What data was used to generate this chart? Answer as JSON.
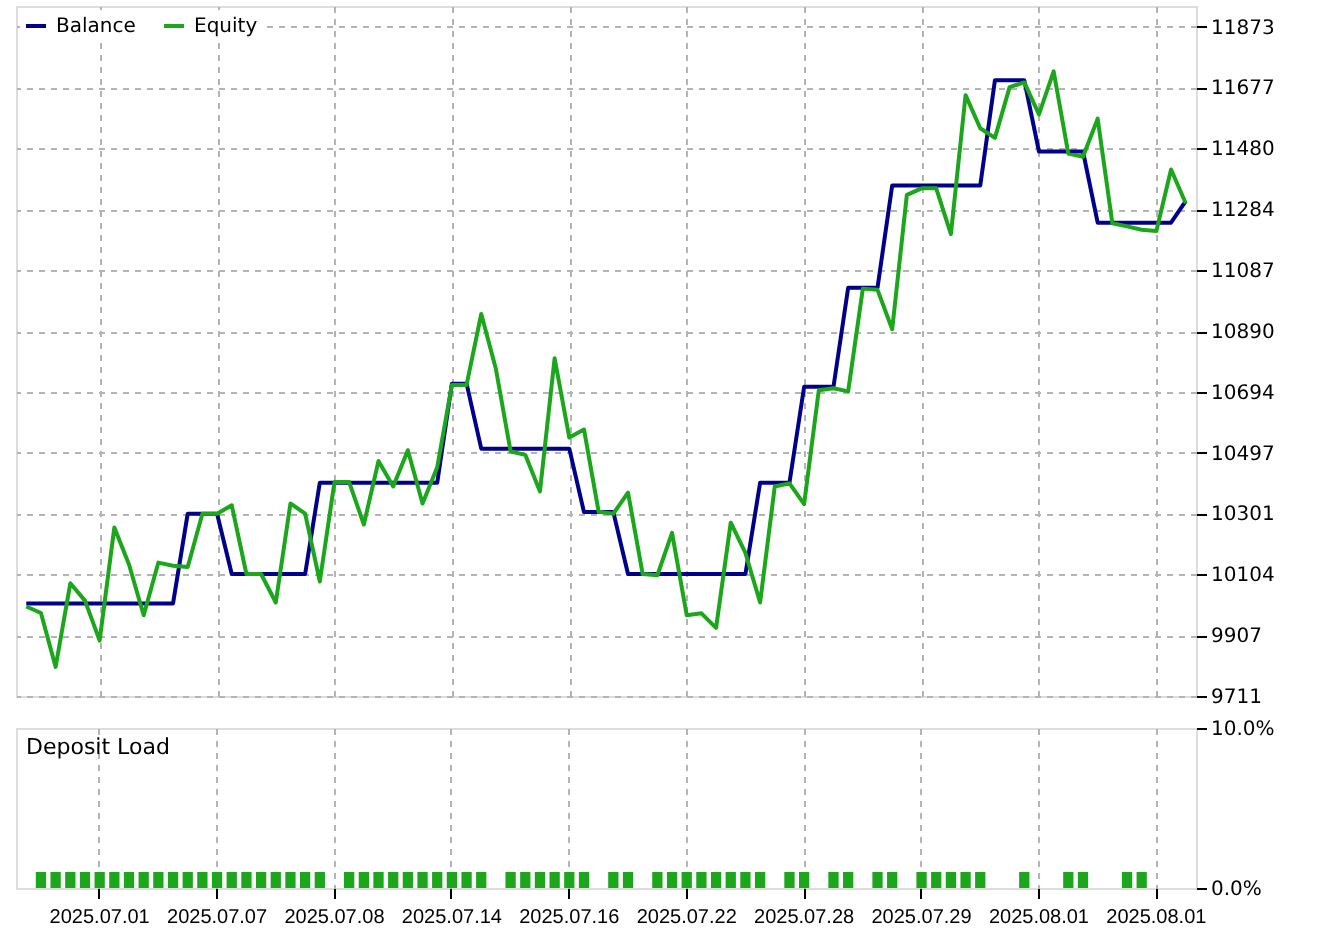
{
  "chart_data": [
    {
      "type": "line",
      "legend": "top left",
      "grid": true,
      "tick_labels": "y",
      "marker": "none",
      "line_style": "solid",
      "categories": [
        null,
        null,
        null,
        null,
        null,
        "2025.07.01",
        null,
        null,
        null,
        null,
        null,
        null,
        null,
        "2025.07.07",
        null,
        null,
        null,
        null,
        null,
        null,
        null,
        "2025.07.08",
        null,
        null,
        null,
        null,
        null,
        null,
        null,
        "2025.07.14",
        null,
        null,
        null,
        null,
        null,
        null,
        null,
        "2025.07.16",
        null,
        null,
        null,
        null,
        null,
        null,
        null,
        "2025.07.22",
        null,
        null,
        null,
        null,
        null,
        null,
        null,
        "2025.07.28",
        null,
        null,
        null,
        null,
        null,
        null,
        null,
        "2025.07.29",
        null,
        null,
        null,
        null,
        null,
        null,
        null,
        "2025.08.01",
        null,
        null,
        null,
        null,
        null,
        null,
        null,
        "2025.08.01",
        null,
        null
      ],
      "ylim": [
        9711,
        11940
      ],
      "yticks": [
        9711,
        9907,
        10104,
        10301,
        10497,
        10694,
        10890,
        11087,
        11284,
        11480,
        11677,
        11873
      ],
      "series": [
        {
          "name": "Balance",
          "color": "#00008b",
          "values": [
            10010,
            10010,
            10010,
            10010,
            10010,
            10010,
            10010,
            10010,
            10010,
            10010,
            10010,
            10300,
            10300,
            10300,
            10105,
            10105,
            10105,
            10105,
            10105,
            10105,
            10400,
            10400,
            10400,
            10400,
            10400,
            10400,
            10400,
            10400,
            10400,
            10720,
            10720,
            10510,
            10510,
            10510,
            10510,
            10510,
            10510,
            10510,
            10305,
            10305,
            10305,
            10105,
            10105,
            10105,
            10105,
            10105,
            10105,
            10105,
            10105,
            10105,
            10400,
            10400,
            10400,
            10710,
            10710,
            10710,
            11030,
            11030,
            11030,
            11360,
            11360,
            11360,
            11360,
            11360,
            11360,
            11360,
            11700,
            11700,
            11700,
            11470,
            11470,
            11470,
            11470,
            11240,
            11240,
            11240,
            11240,
            11240,
            11240,
            11310
          ]
        },
        {
          "name": "Equity",
          "color": "#1ca61c",
          "values": [
            10000,
            9979,
            9805,
            10075,
            10019,
            9890,
            10255,
            10136,
            9972,
            10142,
            10132,
            10128,
            10300,
            10300,
            10327,
            10105,
            10105,
            10013,
            10333,
            10300,
            10081,
            10402,
            10402,
            10265,
            10470,
            10388,
            10505,
            10333,
            10450,
            10716,
            10716,
            10945,
            10767,
            10501,
            10490,
            10372,
            10802,
            10546,
            10572,
            10306,
            10300,
            10368,
            10105,
            10101,
            10238,
            9972,
            9978,
            9931,
            10271,
            10173,
            10013,
            10388,
            10398,
            10331,
            10699,
            10705,
            10695,
            11027,
            11023,
            10896,
            11330,
            11351,
            11351,
            11203,
            11652,
            11545,
            11514,
            11678,
            11693,
            11590,
            11729,
            11463,
            11453,
            11576,
            11238,
            11228,
            11217,
            11213,
            11412,
            11303
          ]
        }
      ]
    },
    {
      "type": "bar",
      "title": "Deposit Load",
      "grid": "x",
      "legend": false,
      "categories": [
        null,
        null,
        null,
        null,
        null,
        "2025.07.01",
        null,
        null,
        null,
        null,
        null,
        null,
        null,
        "2025.07.07",
        null,
        null,
        null,
        null,
        null,
        null,
        null,
        "2025.07.08",
        null,
        null,
        null,
        null,
        null,
        null,
        null,
        "2025.07.14",
        null,
        null,
        null,
        null,
        null,
        null,
        null,
        "2025.07.16",
        null,
        null,
        null,
        null,
        null,
        null,
        null,
        "2025.07.22",
        null,
        null,
        null,
        null,
        null,
        null,
        null,
        "2025.07.28",
        null,
        null,
        null,
        null,
        null,
        null,
        null,
        "2025.07.29",
        null,
        null,
        null,
        null,
        null,
        null,
        null,
        "2025.08.01",
        null,
        null,
        null,
        null,
        null,
        null,
        null,
        "2025.08.01",
        null,
        null
      ],
      "ylim": [
        0,
        10
      ],
      "yticks": [
        {
          "value": 0,
          "label": "0.0%"
        },
        {
          "value": 10,
          "label": "10.0%"
        }
      ],
      "series": [
        {
          "color": "#1ca61c",
          "values": [
            null,
            1,
            1,
            1,
            1,
            1,
            1,
            1,
            1,
            1,
            1,
            1,
            1,
            1,
            1,
            1,
            1,
            1,
            1,
            1,
            1,
            null,
            1,
            1,
            1,
            1,
            1,
            1,
            1,
            1,
            1,
            1,
            null,
            1,
            1,
            1,
            1,
            1,
            1,
            null,
            1,
            1,
            null,
            1,
            1,
            1,
            1,
            1,
            1,
            1,
            1,
            null,
            1,
            1,
            null,
            1,
            1,
            null,
            1,
            1,
            null,
            1,
            1,
            1,
            1,
            1,
            null,
            null,
            1,
            null,
            null,
            1,
            1,
            null,
            null,
            1,
            1,
            null,
            null,
            null
          ]
        }
      ]
    }
  ]
}
